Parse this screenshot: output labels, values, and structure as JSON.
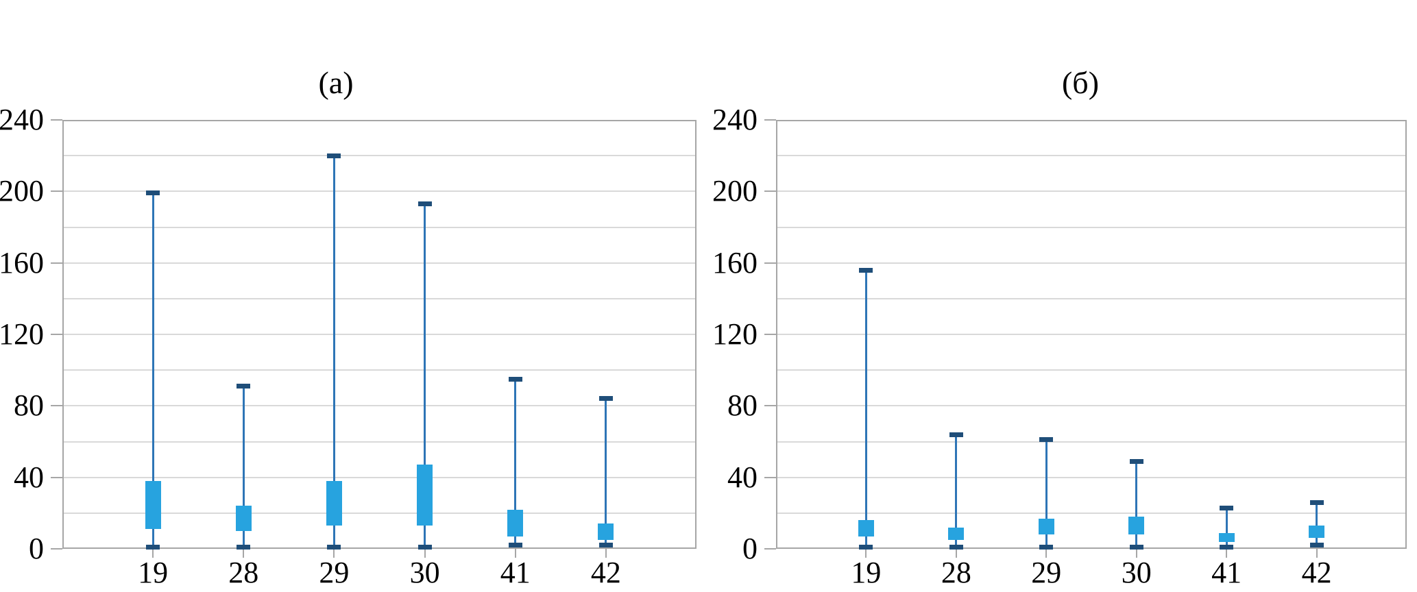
{
  "figure": {
    "background": "#ffffff",
    "panels": [
      {
        "label": "(а)"
      },
      {
        "label": "(б)"
      }
    ]
  },
  "colors": {
    "box_fill": "#27a3df",
    "whisker_line": "#2e75b6",
    "whisker_cap": "#1f4e79",
    "gridline": "#d9d9d9",
    "axis_border": "#a6a6a6",
    "text": "#000000",
    "background": "#ffffff"
  },
  "chart_data": [
    {
      "type": "box",
      "title": "(а)",
      "categories": [
        "19",
        "28",
        "29",
        "30",
        "41",
        "42"
      ],
      "xlabel": "",
      "ylabel": "",
      "ylim": [
        0,
        240
      ],
      "yticks": [
        0,
        40,
        80,
        120,
        160,
        200,
        240
      ],
      "grid_step": 20,
      "grid": true,
      "legend_position": "none",
      "median_line": false,
      "empty_trailing_slots": 1,
      "boxes": [
        {
          "category": "19",
          "whisker_low": 1,
          "q1": 11,
          "q3": 38,
          "whisker_high": 199
        },
        {
          "category": "28",
          "whisker_low": 1,
          "q1": 10,
          "q3": 24,
          "whisker_high": 91
        },
        {
          "category": "29",
          "whisker_low": 1,
          "q1": 13,
          "q3": 38,
          "whisker_high": 220
        },
        {
          "category": "30",
          "whisker_low": 1,
          "q1": 13,
          "q3": 47,
          "whisker_high": 193
        },
        {
          "category": "41",
          "whisker_low": 2,
          "q1": 7,
          "q3": 22,
          "whisker_high": 95
        },
        {
          "category": "42",
          "whisker_low": 2,
          "q1": 5,
          "q3": 14,
          "whisker_high": 84
        }
      ]
    },
    {
      "type": "box",
      "title": "(б)",
      "categories": [
        "19",
        "28",
        "29",
        "30",
        "41",
        "42"
      ],
      "xlabel": "",
      "ylabel": "",
      "ylim": [
        0,
        240
      ],
      "yticks": [
        0,
        40,
        80,
        120,
        160,
        200,
        240
      ],
      "grid_step": 20,
      "grid": true,
      "legend_position": "none",
      "median_line": false,
      "empty_trailing_slots": 1,
      "boxes": [
        {
          "category": "19",
          "whisker_low": 1,
          "q1": 7,
          "q3": 16,
          "whisker_high": 156
        },
        {
          "category": "28",
          "whisker_low": 1,
          "q1": 5,
          "q3": 12,
          "whisker_high": 64
        },
        {
          "category": "29",
          "whisker_low": 1,
          "q1": 8,
          "q3": 17,
          "whisker_high": 61
        },
        {
          "category": "30",
          "whisker_low": 1,
          "q1": 8,
          "q3": 18,
          "whisker_high": 49
        },
        {
          "category": "41",
          "whisker_low": 1,
          "q1": 4,
          "q3": 9,
          "whisker_high": 23
        },
        {
          "category": "42",
          "whisker_low": 2,
          "q1": 6,
          "q3": 13,
          "whisker_high": 26
        }
      ]
    }
  ]
}
